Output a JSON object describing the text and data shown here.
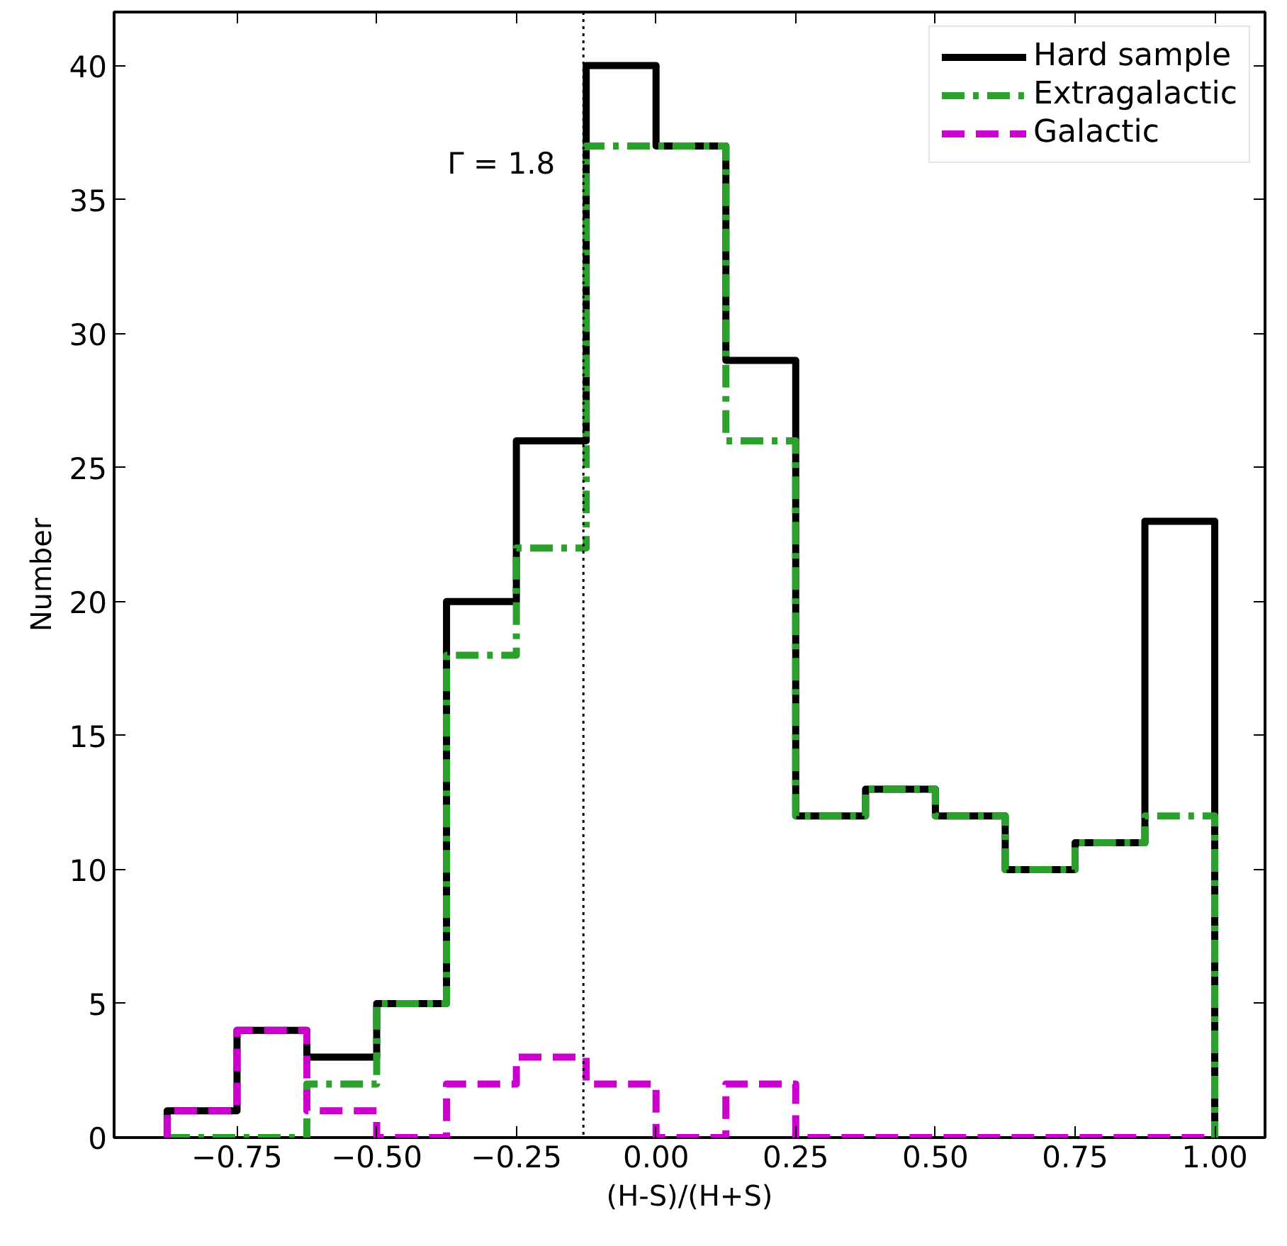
{
  "chart_data": {
    "type": "histogram",
    "xlabel": "(H-S)/(H+S)",
    "ylabel": "Number",
    "bins": [
      -0.875,
      -0.75,
      -0.625,
      -0.5,
      -0.375,
      -0.25,
      -0.125,
      0,
      0.125,
      0.25,
      0.375,
      0.5,
      0.625,
      0.75,
      0.875,
      1.0
    ],
    "series": [
      {
        "name": "Hard sample",
        "color": "#000000",
        "line_style": "solid",
        "values": [
          1,
          4,
          3,
          5,
          20,
          26,
          40,
          37,
          29,
          12,
          13,
          12,
          10,
          11,
          23
        ]
      },
      {
        "name": "Extragalactic",
        "color": "#2ca02c",
        "line_style": "dashdot",
        "values": [
          0,
          0,
          2,
          5,
          18,
          22,
          37,
          37,
          26,
          12,
          13,
          12,
          10,
          11,
          12
        ]
      },
      {
        "name": "Galactic",
        "color": "#cc00cc",
        "line_style": "dashed",
        "values": [
          1,
          4,
          1,
          0,
          2,
          3,
          2,
          0,
          2,
          0,
          0,
          0,
          0,
          0,
          0
        ]
      }
    ],
    "xlim": [
      -0.97,
      1.09
    ],
    "ylim": [
      0,
      42
    ],
    "xticks": [
      {
        "value": -0.75,
        "label": "−0.75"
      },
      {
        "value": -0.5,
        "label": "−0.50"
      },
      {
        "value": -0.25,
        "label": "−0.25"
      },
      {
        "value": 0,
        "label": "0.00"
      },
      {
        "value": 0.25,
        "label": "0.25"
      },
      {
        "value": 0.5,
        "label": "0.50"
      },
      {
        "value": 0.75,
        "label": "0.75"
      },
      {
        "value": 1.0,
        "label": "1.00"
      }
    ],
    "yticks": [
      0,
      5,
      10,
      15,
      20,
      25,
      30,
      35,
      40
    ],
    "ref_lines": [
      {
        "axis": "x",
        "value": -0.13,
        "color": "#000000",
        "line_style": "dotted"
      }
    ],
    "annotations": [
      "Γ = 1.8"
    ],
    "grid": false,
    "legend": "top right"
  }
}
